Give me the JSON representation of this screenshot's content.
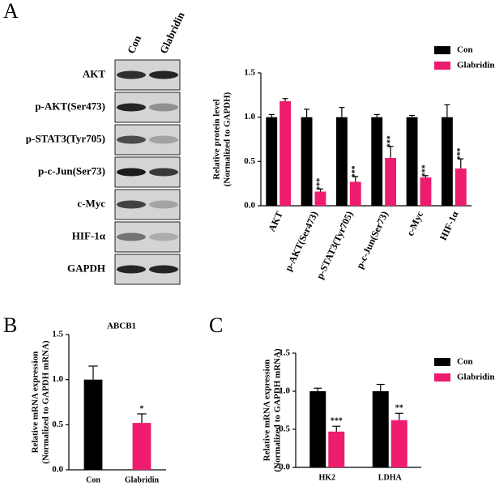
{
  "panels": [
    "A",
    "B",
    "C"
  ],
  "blot": {
    "columns": [
      "Con",
      "Glabridin"
    ],
    "rows": [
      "AKT",
      "p-AKT(Ser473)",
      "p-STAT3(Tyr705)",
      "p-c-Jun(Ser73)",
      "c-Myc",
      "HIF-1α",
      "GAPDH"
    ]
  },
  "chart_data": [
    {
      "type": "bar",
      "ylabel": [
        "Relative protein level",
        "(Normalized to GAPDH)"
      ],
      "categories": [
        "AKT",
        "p-AKT(Ser473)",
        "p-STAT3(Tyr705)",
        "p-c-Jun(Ser73)",
        "c-Myc",
        "HIF-1α"
      ],
      "series": [
        {
          "name": "Con",
          "color": "#000000",
          "values": [
            1,
            1,
            1,
            1,
            1,
            1
          ],
          "errors": [
            0.03,
            0.09,
            0.11,
            0.03,
            0.02,
            0.14
          ]
        },
        {
          "name": "Glabridin",
          "color": "#ee1c6e",
          "values": [
            1.18,
            0.16,
            0.27,
            0.54,
            0.32,
            0.42
          ],
          "errors": [
            0.03,
            0.03,
            0.06,
            0.13,
            0.02,
            0.11
          ],
          "significance": [
            null,
            "***",
            "***",
            "***",
            "***",
            "***"
          ]
        }
      ],
      "ylim": [
        0,
        1.5
      ],
      "yticks": [
        {
          "value": 0,
          "label": "0.0"
        },
        0.5,
        {
          "value": 1,
          "label": "1.0"
        },
        1.5
      ],
      "legend": "upper right"
    },
    {
      "type": "bar",
      "title": "ABCB1",
      "ylabel": [
        "Relative mRNA expression",
        "(Normalized to GAPDH mRNA)"
      ],
      "categories": [
        "Con",
        "Glabridin"
      ],
      "values": [
        1.0,
        0.52
      ],
      "errors": [
        0.15,
        0.1
      ],
      "colors": [
        "#000000",
        "#ee1c6e"
      ],
      "significance": [
        null,
        "*"
      ],
      "ylim": [
        0,
        1.5
      ],
      "yticks": [
        {
          "value": 0,
          "label": "0.0"
        },
        0.5,
        {
          "value": 1,
          "label": "1.0"
        },
        1.5
      ]
    },
    {
      "type": "bar",
      "ylabel": [
        "Relative mRNA expression",
        "(Normalized to GAPDH mRNA)"
      ],
      "categories": [
        "HK2",
        "LDHA"
      ],
      "series": [
        {
          "name": "Con",
          "color": "#000000",
          "values": [
            1.0,
            1.0
          ],
          "errors": [
            0.04,
            0.09
          ]
        },
        {
          "name": "Glabridin",
          "color": "#ee1c6e",
          "values": [
            0.47,
            0.62
          ],
          "errors": [
            0.07,
            0.09
          ],
          "significance": [
            "***",
            "**"
          ]
        }
      ],
      "ylim": [
        0,
        1.5
      ],
      "yticks": [
        {
          "value": 0,
          "label": "0.0"
        },
        0.5,
        {
          "value": 1,
          "label": "1.0"
        },
        1.5
      ],
      "legend": "upper right"
    }
  ]
}
